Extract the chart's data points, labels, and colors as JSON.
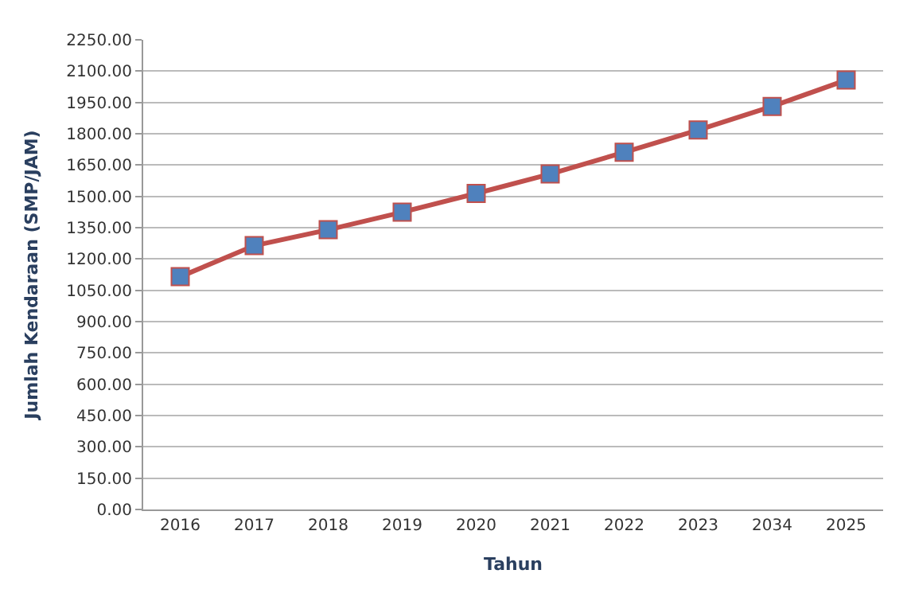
{
  "chart_data": {
    "type": "line",
    "xlabel": "Tahun",
    "ylabel": "Jumlah Kendaraan (SMP/JAM)",
    "categories": [
      "2016",
      "2017",
      "2018",
      "2019",
      "2020",
      "2021",
      "2022",
      "2023",
      "2034",
      "2025"
    ],
    "series": [
      {
        "color": "#c0504d",
        "colors": [
          "#4f81bd",
          "#4f81bd",
          "#4f81bd",
          "#4f81bd",
          "#4f81bd",
          "#4f81bd",
          "#4f81bd",
          "#4f81bd",
          "#4f81bd",
          "#4f81bd"
        ],
        "values": [
          1115,
          1264,
          1340,
          1424,
          1514,
          1607,
          1711,
          1818,
          1931,
          2057
        ]
      }
    ],
    "ylim": [
      0,
      2250
    ],
    "yticks": [
      {
        "value": 0,
        "label": "0.00"
      },
      {
        "value": 150,
        "label": "150.00"
      },
      {
        "value": 300,
        "label": "300.00"
      },
      {
        "value": 450,
        "label": "450.00"
      },
      {
        "value": 600,
        "label": "600.00"
      },
      {
        "value": 750,
        "label": "750.00"
      },
      {
        "value": 900,
        "label": "900.00"
      },
      {
        "value": 1050,
        "label": "1050.00"
      },
      {
        "value": 1200,
        "label": "1200.00"
      },
      {
        "value": 1350,
        "label": "1350.00"
      },
      {
        "value": 1500,
        "label": "1500.00"
      },
      {
        "value": 1650,
        "label": "1650.00"
      },
      {
        "value": 1800,
        "label": "1800.00"
      },
      {
        "value": 1950,
        "label": "1950.00"
      },
      {
        "value": 2100,
        "label": "2100.00"
      },
      {
        "value": 2250,
        "label": "2250.00"
      }
    ],
    "grid": "y",
    "marker": "square",
    "line_style": "solid",
    "legend": false
  }
}
